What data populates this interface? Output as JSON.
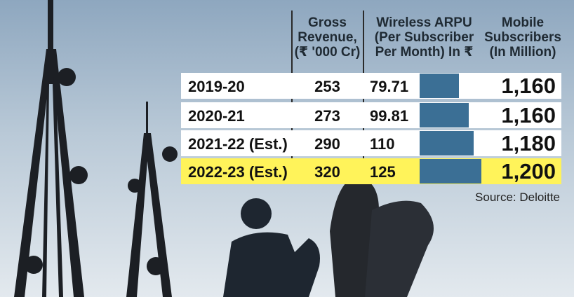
{
  "chart_data": {
    "type": "bar-table",
    "categories": [
      "2019-20",
      "2020-21",
      "2021-22 (Est.)",
      "2022-23 (Est.)"
    ],
    "highlight_row": 3,
    "highlight_color": "#fff35a",
    "series": [
      {
        "name": "Gross\nRevenue,\n(₹ '000 Cr)",
        "values": [
          253,
          273,
          290,
          320
        ]
      },
      {
        "name": "Wireless ARPU\n(Per Subscriber\nPer Month) In ₹",
        "values": [
          79.71,
          99.81,
          110,
          125
        ],
        "color": "#3b6f95"
      },
      {
        "name": "Mobile\nSubscribers\n(In Million)",
        "values": [
          1160,
          1160,
          1180,
          1200
        ],
        "value_labels": [
          "1,160",
          "1,160",
          "1,180",
          "1,200"
        ]
      }
    ],
    "source": "Source: Deloitte"
  }
}
